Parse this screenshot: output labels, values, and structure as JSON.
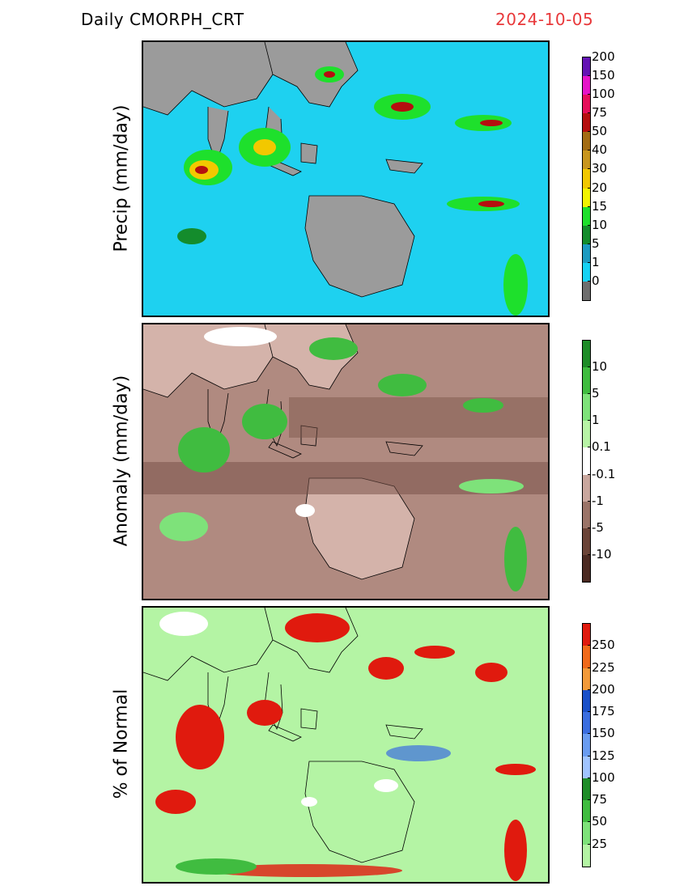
{
  "header": {
    "left_title": "Daily  CMORPH_CRT",
    "date": "2024-10-05",
    "date_color": "#e8383a"
  },
  "panels": [
    {
      "ylabel": "Precip  (mm/day)",
      "ocean_color": "#1ed1f0",
      "land_color": "#9b9b9b",
      "colorbar": {
        "colors": [
          "#6e6e6e",
          "#16d2f4",
          "#1d9bc1",
          "#148c2c",
          "#1ee02c",
          "#f2f400",
          "#f2c800",
          "#c8961e",
          "#a36c14",
          "#b50f0f",
          "#e60e5a",
          "#e614c8",
          "#6413b4"
        ],
        "labels": [
          "0",
          "1",
          "5",
          "10",
          "15",
          "20",
          "30",
          "40",
          "50",
          "75",
          "100",
          "150",
          "200"
        ]
      }
    },
    {
      "ylabel": "Anomaly  (mm/day)",
      "ocean_color": "#b08a80",
      "land_color": "#d4b3aa",
      "colorbar": {
        "colors": [
          "#4b2a22",
          "#6b4438",
          "#9b7468",
          "#c9a79e",
          "#ffffff",
          "#b8f4a6",
          "#7ee27a",
          "#40bc40",
          "#1e8c28"
        ],
        "labels": [
          "-10",
          "-5",
          "-1",
          "-0.1",
          "0.1",
          "1",
          "5",
          "10"
        ]
      }
    },
    {
      "ylabel": "% of Normal",
      "ocean_color": "#b4f4a4",
      "land_color": "#b4f4a4",
      "colorbar": {
        "colors": [
          "#b4f4a4",
          "#7ee27a",
          "#40bc40",
          "#1e8c28",
          "#a0c4ff",
          "#6a9cf0",
          "#3b6ee0",
          "#1a50c8",
          "#f29a3a",
          "#f06a1a",
          "#e01a0e"
        ],
        "labels": [
          "25",
          "50",
          "75",
          "100",
          "125",
          "150",
          "175",
          "200",
          "225",
          "250"
        ]
      }
    }
  ]
}
